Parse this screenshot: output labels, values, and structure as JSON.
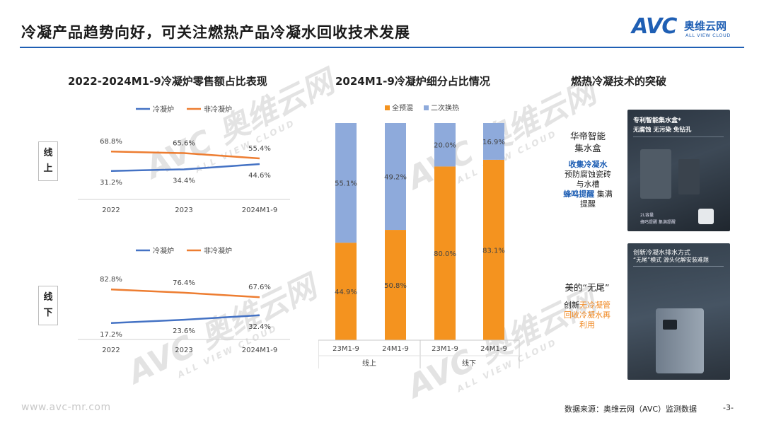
{
  "header": {
    "title": "冷凝产品趋势向好，可关注燃热产品冷凝水回收技术发展",
    "logo": {
      "main": "AVC",
      "cn": "奥维云网",
      "en": "ALL VIEW CLOUD"
    }
  },
  "watermark": {
    "main": "AVC 奥维云网",
    "sub": "ALL VIEW CLOUD"
  },
  "sections": {
    "left_title": "2022-2024M1-9冷凝炉零售额占比表现",
    "mid_title": "2024M1-9冷凝炉细分占比情况",
    "right_title": "燃热冷凝技术的突破"
  },
  "row_labels": {
    "online": [
      "线",
      "上"
    ],
    "offline": [
      "线",
      "下"
    ]
  },
  "chart_data": [
    {
      "type": "line",
      "title": "线上",
      "categories": [
        "2022",
        "2023",
        "2024M1-9"
      ],
      "series": [
        {
          "name": "冷凝炉",
          "values": [
            31.2,
            34.4,
            44.6
          ],
          "labels": [
            "31.2%",
            "34.4%",
            "44.6%"
          ],
          "color": "#4472c4"
        },
        {
          "name": "非冷凝炉",
          "values": [
            68.8,
            65.6,
            55.4
          ],
          "labels": [
            "68.8%",
            "65.6%",
            "55.4%"
          ],
          "color": "#ed7d31"
        }
      ],
      "ylim": [
        20,
        80
      ]
    },
    {
      "type": "line",
      "title": "线下",
      "categories": [
        "2022",
        "2023",
        "2024M1-9"
      ],
      "series": [
        {
          "name": "冷凝炉",
          "values": [
            17.2,
            23.6,
            32.4
          ],
          "labels": [
            "17.2%",
            "23.6%",
            "32.4%"
          ],
          "color": "#4472c4"
        },
        {
          "name": "非冷凝炉",
          "values": [
            82.8,
            76.4,
            67.6
          ],
          "labels": [
            "82.8%",
            "76.4%",
            "67.6%"
          ],
          "color": "#ed7d31"
        }
      ],
      "ylim": [
        10,
        90
      ]
    },
    {
      "type": "bar",
      "stacked": true,
      "title": "2024M1-9冷凝炉细分占比情况",
      "categories": [
        "23M1-9",
        "24M1-9",
        "23M1-9",
        "24M1-9"
      ],
      "groups": [
        {
          "name": "线上",
          "span": [
            0,
            1
          ]
        },
        {
          "name": "线下",
          "span": [
            2,
            3
          ]
        }
      ],
      "series": [
        {
          "name": "全预混",
          "values": [
            44.9,
            50.8,
            80.0,
            83.1
          ],
          "labels": [
            "44.9%",
            "50.8%",
            "80.0%",
            "83.1%"
          ],
          "color": "#f4931f"
        },
        {
          "name": "二次换热",
          "values": [
            55.1,
            49.2,
            20.0,
            16.9
          ],
          "labels": [
            "55.1%",
            "49.2%",
            "20.0%",
            "16.9%"
          ],
          "color": "#8eaadb"
        }
      ],
      "ylim": [
        0,
        100
      ]
    }
  ],
  "products": [
    {
      "card_title": "专利智能集水盒*",
      "card_sub": "无腐蚀 无污染 免钻孔",
      "card_small": [
        "2L容量",
        "蜂鸣提醒 集满提醒"
      ],
      "brand_line1": "华帝智能",
      "brand_line2": "集水盒",
      "hl1": "收集冷凝水",
      "desc1": "预防腐蚀瓷砖",
      "desc2": "与水槽",
      "hl2": "蜂鸣提醒",
      "desc3": "集满",
      "desc4": "提醒"
    },
    {
      "card_title": "创新冷凝水排水方式",
      "card_sub": "“无尾”模式 源头化解安装难题",
      "brand_line1": "美的“无尾”",
      "desc_prefix": "创新",
      "hl1": "无冷凝管",
      "hl2": "回收冷凝水再",
      "hl3": "利用"
    }
  ],
  "footer": {
    "url": "www.avc-mr.com",
    "source": "数据来源：奥维云网（AVC）监测数据",
    "page": "-3-"
  }
}
